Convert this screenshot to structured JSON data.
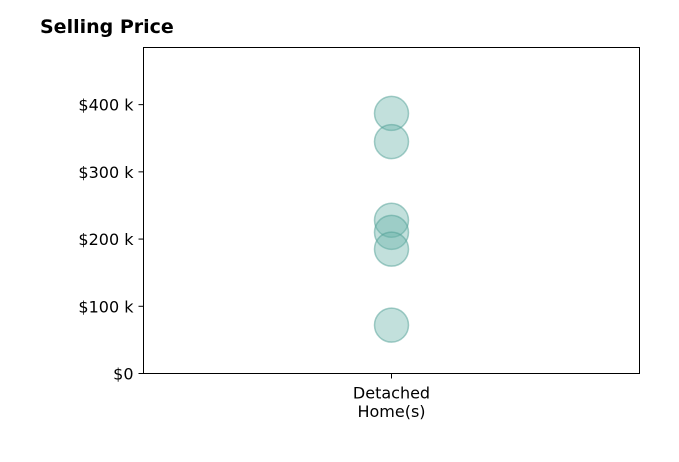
{
  "chart_data": {
    "type": "scatter",
    "title": "Selling Price",
    "xlabel": "",
    "ylabel": "",
    "categories": [
      [
        "Detached",
        "Home(s)"
      ]
    ],
    "series": [
      {
        "category_index": 0,
        "values": [
          387000,
          345000,
          228000,
          210000,
          185000,
          72000
        ]
      }
    ],
    "ylim": [
      0,
      485000
    ],
    "yticks": [
      0,
      100000,
      200000,
      300000,
      400000
    ],
    "ytick_labels": [
      "$0",
      "$100 k",
      "$200 k",
      "$300 k",
      "$400 k"
    ],
    "grid": false,
    "marker_color": "#66b2a8",
    "marker_edge_color": "#4e9d93"
  }
}
